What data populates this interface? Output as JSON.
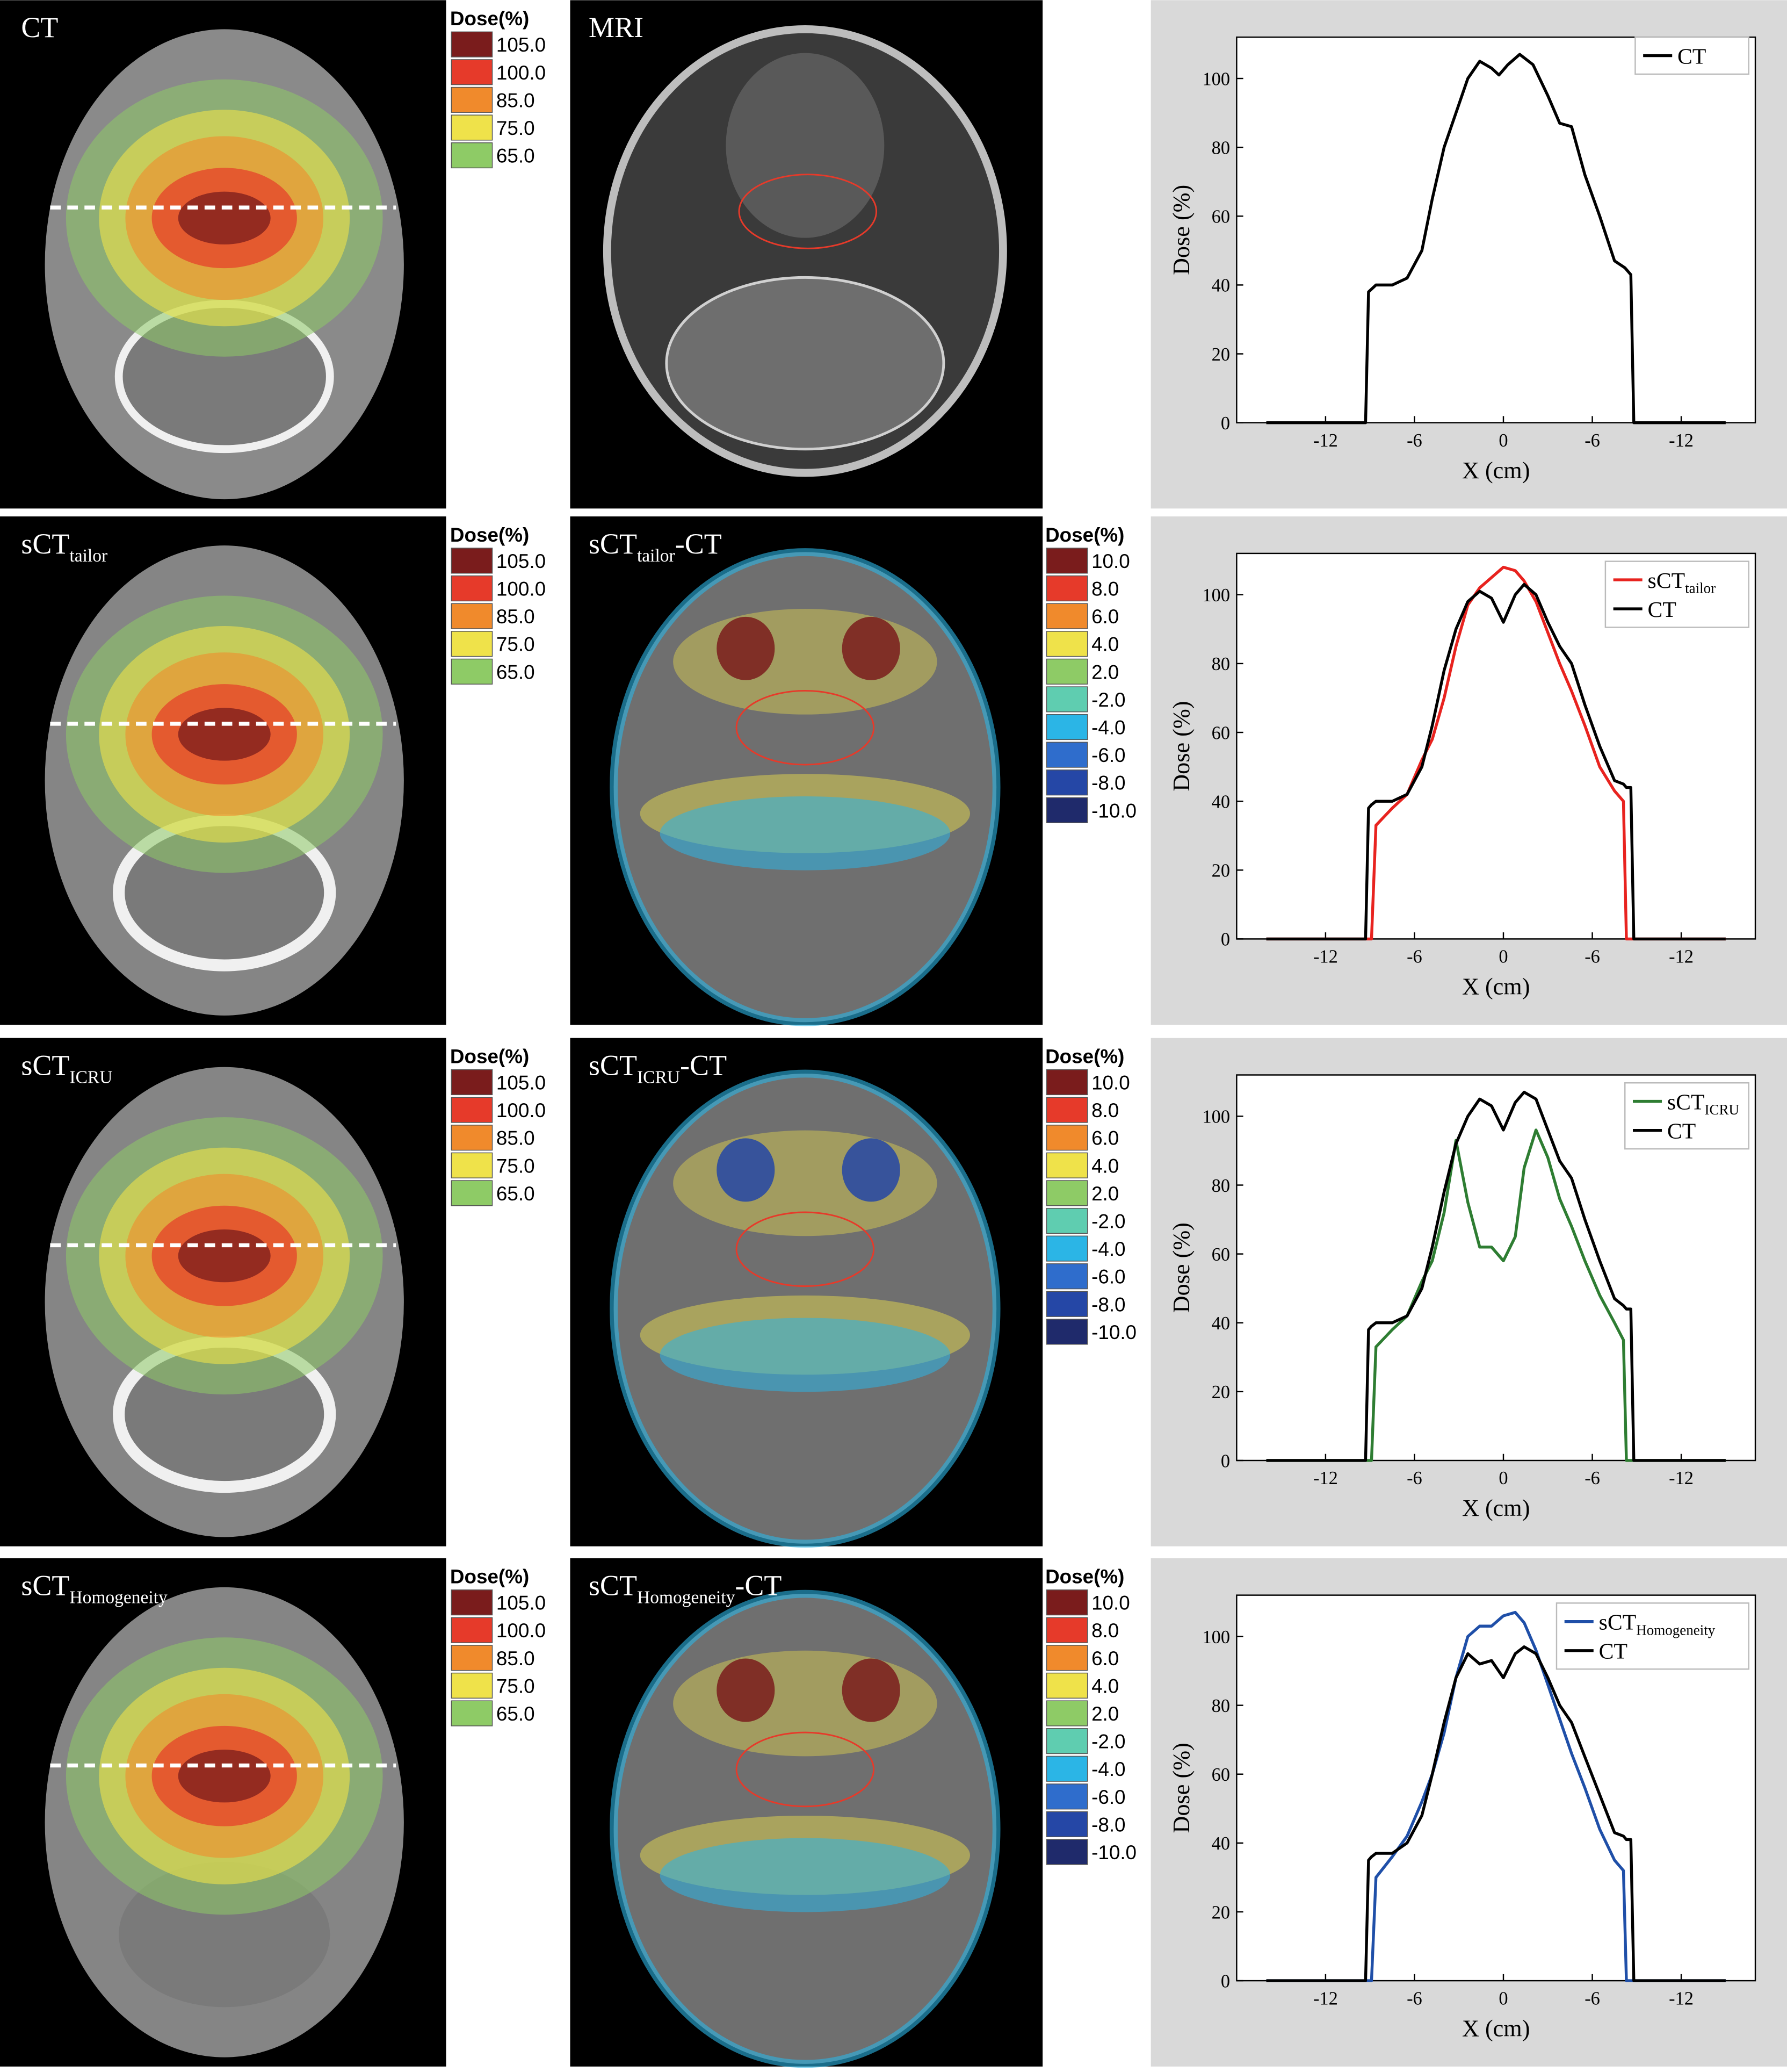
{
  "rows": [
    {
      "image_label": {
        "text": "CT"
      },
      "compare_label": {
        "text": "MRI"
      },
      "show_diff_legend": false
    },
    {
      "image_label": {
        "text": "sCT",
        "sub": "tailor"
      },
      "compare_label": {
        "text": "sCT",
        "sub": "tailor",
        "suffix": "-CT"
      },
      "show_diff_legend": true
    },
    {
      "image_label": {
        "text": "sCT",
        "sub": "ICRU"
      },
      "compare_label": {
        "text": "sCT",
        "sub": "ICRU",
        "suffix": "-CT"
      },
      "show_diff_legend": true
    },
    {
      "image_label": {
        "text": "sCT",
        "sub": "Homogeneity"
      },
      "compare_label": {
        "text": "sCT",
        "sub": "Homogeneity",
        "suffix": "-CT"
      },
      "show_diff_legend": true
    }
  ],
  "dose_legend": {
    "title": "Dose(%)",
    "labels": [
      "105.0",
      "100.0",
      "85.0",
      "75.0",
      "65.0"
    ],
    "colors": [
      "#7a1c1c",
      "#e63a2a",
      "#f08a2c",
      "#efe24a",
      "#8ecb66"
    ]
  },
  "diff_legend": {
    "title": "Dose(%)",
    "labels": [
      "10.0",
      "8.0",
      "6.0",
      "4.0",
      "2.0",
      "-2.0",
      "-4.0",
      "-6.0",
      "-8.0",
      "-10.0"
    ],
    "colors": [
      "#7a1c1c",
      "#e63a2a",
      "#f08a2c",
      "#efe24a",
      "#8ecb66",
      "#5fcdb0",
      "#2bb5e6",
      "#2f6dcc",
      "#2547a6",
      "#1f2a6b"
    ]
  },
  "chart_data": [
    {
      "type": "line",
      "xlabel": "X (cm)",
      "ylabel": "Dose (%)",
      "legend": "upper right",
      "xlim": [
        -18,
        17
      ],
      "ylim": [
        0,
        112
      ],
      "xticks": [
        -12,
        -6,
        0,
        {
          "value": 6,
          "label": "-6"
        },
        {
          "value": 12,
          "label": "-12"
        }
      ],
      "yticks": [
        0,
        20,
        40,
        60,
        80,
        100
      ],
      "x": [
        -16,
        -9.3,
        -9.1,
        -8.6,
        -7.5,
        -6.5,
        -5.5,
        -4.8,
        -4,
        -3.2,
        -2.4,
        -1.6,
        -0.8,
        -0.3,
        0.3,
        1.1,
        2,
        3,
        3.8,
        4.6,
        5.5,
        6.5,
        7.5,
        8.2,
        8.6,
        8.8,
        15
      ],
      "series": [
        {
          "name": "CT",
          "color": "#000000",
          "values": [
            0,
            0,
            38,
            40,
            40,
            42,
            50,
            65,
            80,
            90,
            100,
            105,
            103,
            101,
            104,
            107,
            104,
            95,
            87,
            86,
            72,
            60,
            47,
            45,
            43,
            0,
            0
          ]
        }
      ]
    },
    {
      "type": "line",
      "xlabel": "X (cm)",
      "ylabel": "Dose (%)",
      "legend": "upper right",
      "xlim": [
        -18,
        17
      ],
      "ylim": [
        0,
        112
      ],
      "xticks": [
        -12,
        -6,
        0,
        {
          "value": 6,
          "label": "-6"
        },
        {
          "value": 12,
          "label": "-12"
        }
      ],
      "yticks": [
        0,
        20,
        40,
        60,
        80,
        100
      ],
      "x": [
        -16,
        -9.3,
        -9.1,
        -8.9,
        -8.6,
        -7.5,
        -6.5,
        -5.5,
        -4.8,
        -4,
        -3.2,
        -2.4,
        -1.6,
        -0.8,
        0,
        0.8,
        1.4,
        2.2,
        3,
        3.8,
        4.6,
        5.5,
        6.5,
        7.5,
        8.1,
        8.3,
        8.6,
        8.8,
        15
      ],
      "series": [
        {
          "name": "sCT",
          "name_sub": "tailor",
          "color": "#e8231f",
          "values": [
            0,
            0,
            0,
            0,
            33,
            38,
            42,
            52,
            58,
            70,
            85,
            97,
            102,
            105,
            108,
            107,
            104,
            98,
            89,
            80,
            72,
            62,
            50,
            43,
            40,
            0,
            0,
            0,
            0
          ]
        },
        {
          "name": "CT",
          "color": "#000000",
          "values": [
            0,
            0,
            38,
            39,
            40,
            40,
            42,
            50,
            62,
            78,
            90,
            98,
            101,
            99,
            92,
            100,
            103,
            100,
            92,
            85,
            80,
            68,
            56,
            46,
            45,
            44,
            44,
            0,
            0
          ]
        }
      ]
    },
    {
      "type": "line",
      "xlabel": "X (cm)",
      "ylabel": "Dose (%)",
      "legend": "upper right",
      "xlim": [
        -18,
        17
      ],
      "ylim": [
        0,
        112
      ],
      "xticks": [
        -12,
        -6,
        0,
        {
          "value": 6,
          "label": "-6"
        },
        {
          "value": 12,
          "label": "-12"
        }
      ],
      "yticks": [
        0,
        20,
        40,
        60,
        80,
        100
      ],
      "x": [
        -16,
        -9.3,
        -9.1,
        -8.9,
        -8.6,
        -7.5,
        -6.5,
        -5.5,
        -4.8,
        -4,
        -3.2,
        -2.4,
        -1.6,
        -0.8,
        0,
        0.8,
        1.4,
        2.2,
        3,
        3.8,
        4.6,
        5.5,
        6.5,
        7.5,
        8.1,
        8.3,
        8.6,
        8.8,
        15
      ],
      "series": [
        {
          "name": "sCT",
          "name_sub": "ICRU",
          "color": "#2e7d32",
          "values": [
            0,
            0,
            0,
            0,
            33,
            38,
            42,
            52,
            58,
            72,
            93,
            75,
            62,
            62,
            58,
            65,
            85,
            96,
            88,
            76,
            68,
            58,
            48,
            40,
            35,
            0,
            0,
            0,
            0
          ]
        },
        {
          "name": "CT",
          "color": "#000000",
          "values": [
            0,
            0,
            38,
            39,
            40,
            40,
            42,
            50,
            62,
            78,
            92,
            100,
            105,
            103,
            96,
            104,
            107,
            105,
            96,
            87,
            82,
            70,
            58,
            47,
            45,
            44,
            44,
            0,
            0
          ]
        }
      ]
    },
    {
      "type": "line",
      "xlabel": "X (cm)",
      "ylabel": "Dose (%)",
      "legend": "upper right",
      "xlim": [
        -18,
        17
      ],
      "ylim": [
        0,
        112
      ],
      "xticks": [
        -12,
        -6,
        0,
        {
          "value": 6,
          "label": "-6"
        },
        {
          "value": 12,
          "label": "-12"
        }
      ],
      "yticks": [
        0,
        20,
        40,
        60,
        80,
        100
      ],
      "x": [
        -16,
        -9.3,
        -9.1,
        -8.9,
        -8.6,
        -7.5,
        -6.5,
        -5.5,
        -4.8,
        -4,
        -3.2,
        -2.4,
        -1.6,
        -0.8,
        0,
        0.8,
        1.4,
        2.2,
        3,
        3.8,
        4.6,
        5.5,
        6.5,
        7.5,
        8.1,
        8.3,
        8.6,
        8.8,
        15
      ],
      "series": [
        {
          "name": "sCT",
          "name_sub": "Homogeneity",
          "color": "#1f4fa8",
          "values": [
            0,
            0,
            0,
            0,
            30,
            36,
            42,
            52,
            60,
            72,
            88,
            100,
            103,
            103,
            106,
            107,
            104,
            96,
            86,
            76,
            66,
            56,
            44,
            35,
            32,
            0,
            0,
            0,
            0
          ]
        },
        {
          "name": "CT",
          "color": "#000000",
          "values": [
            0,
            0,
            35,
            36,
            37,
            37,
            40,
            48,
            60,
            75,
            88,
            95,
            92,
            93,
            88,
            95,
            97,
            95,
            88,
            80,
            75,
            65,
            54,
            43,
            42,
            41,
            41,
            0,
            0
          ]
        }
      ]
    }
  ]
}
